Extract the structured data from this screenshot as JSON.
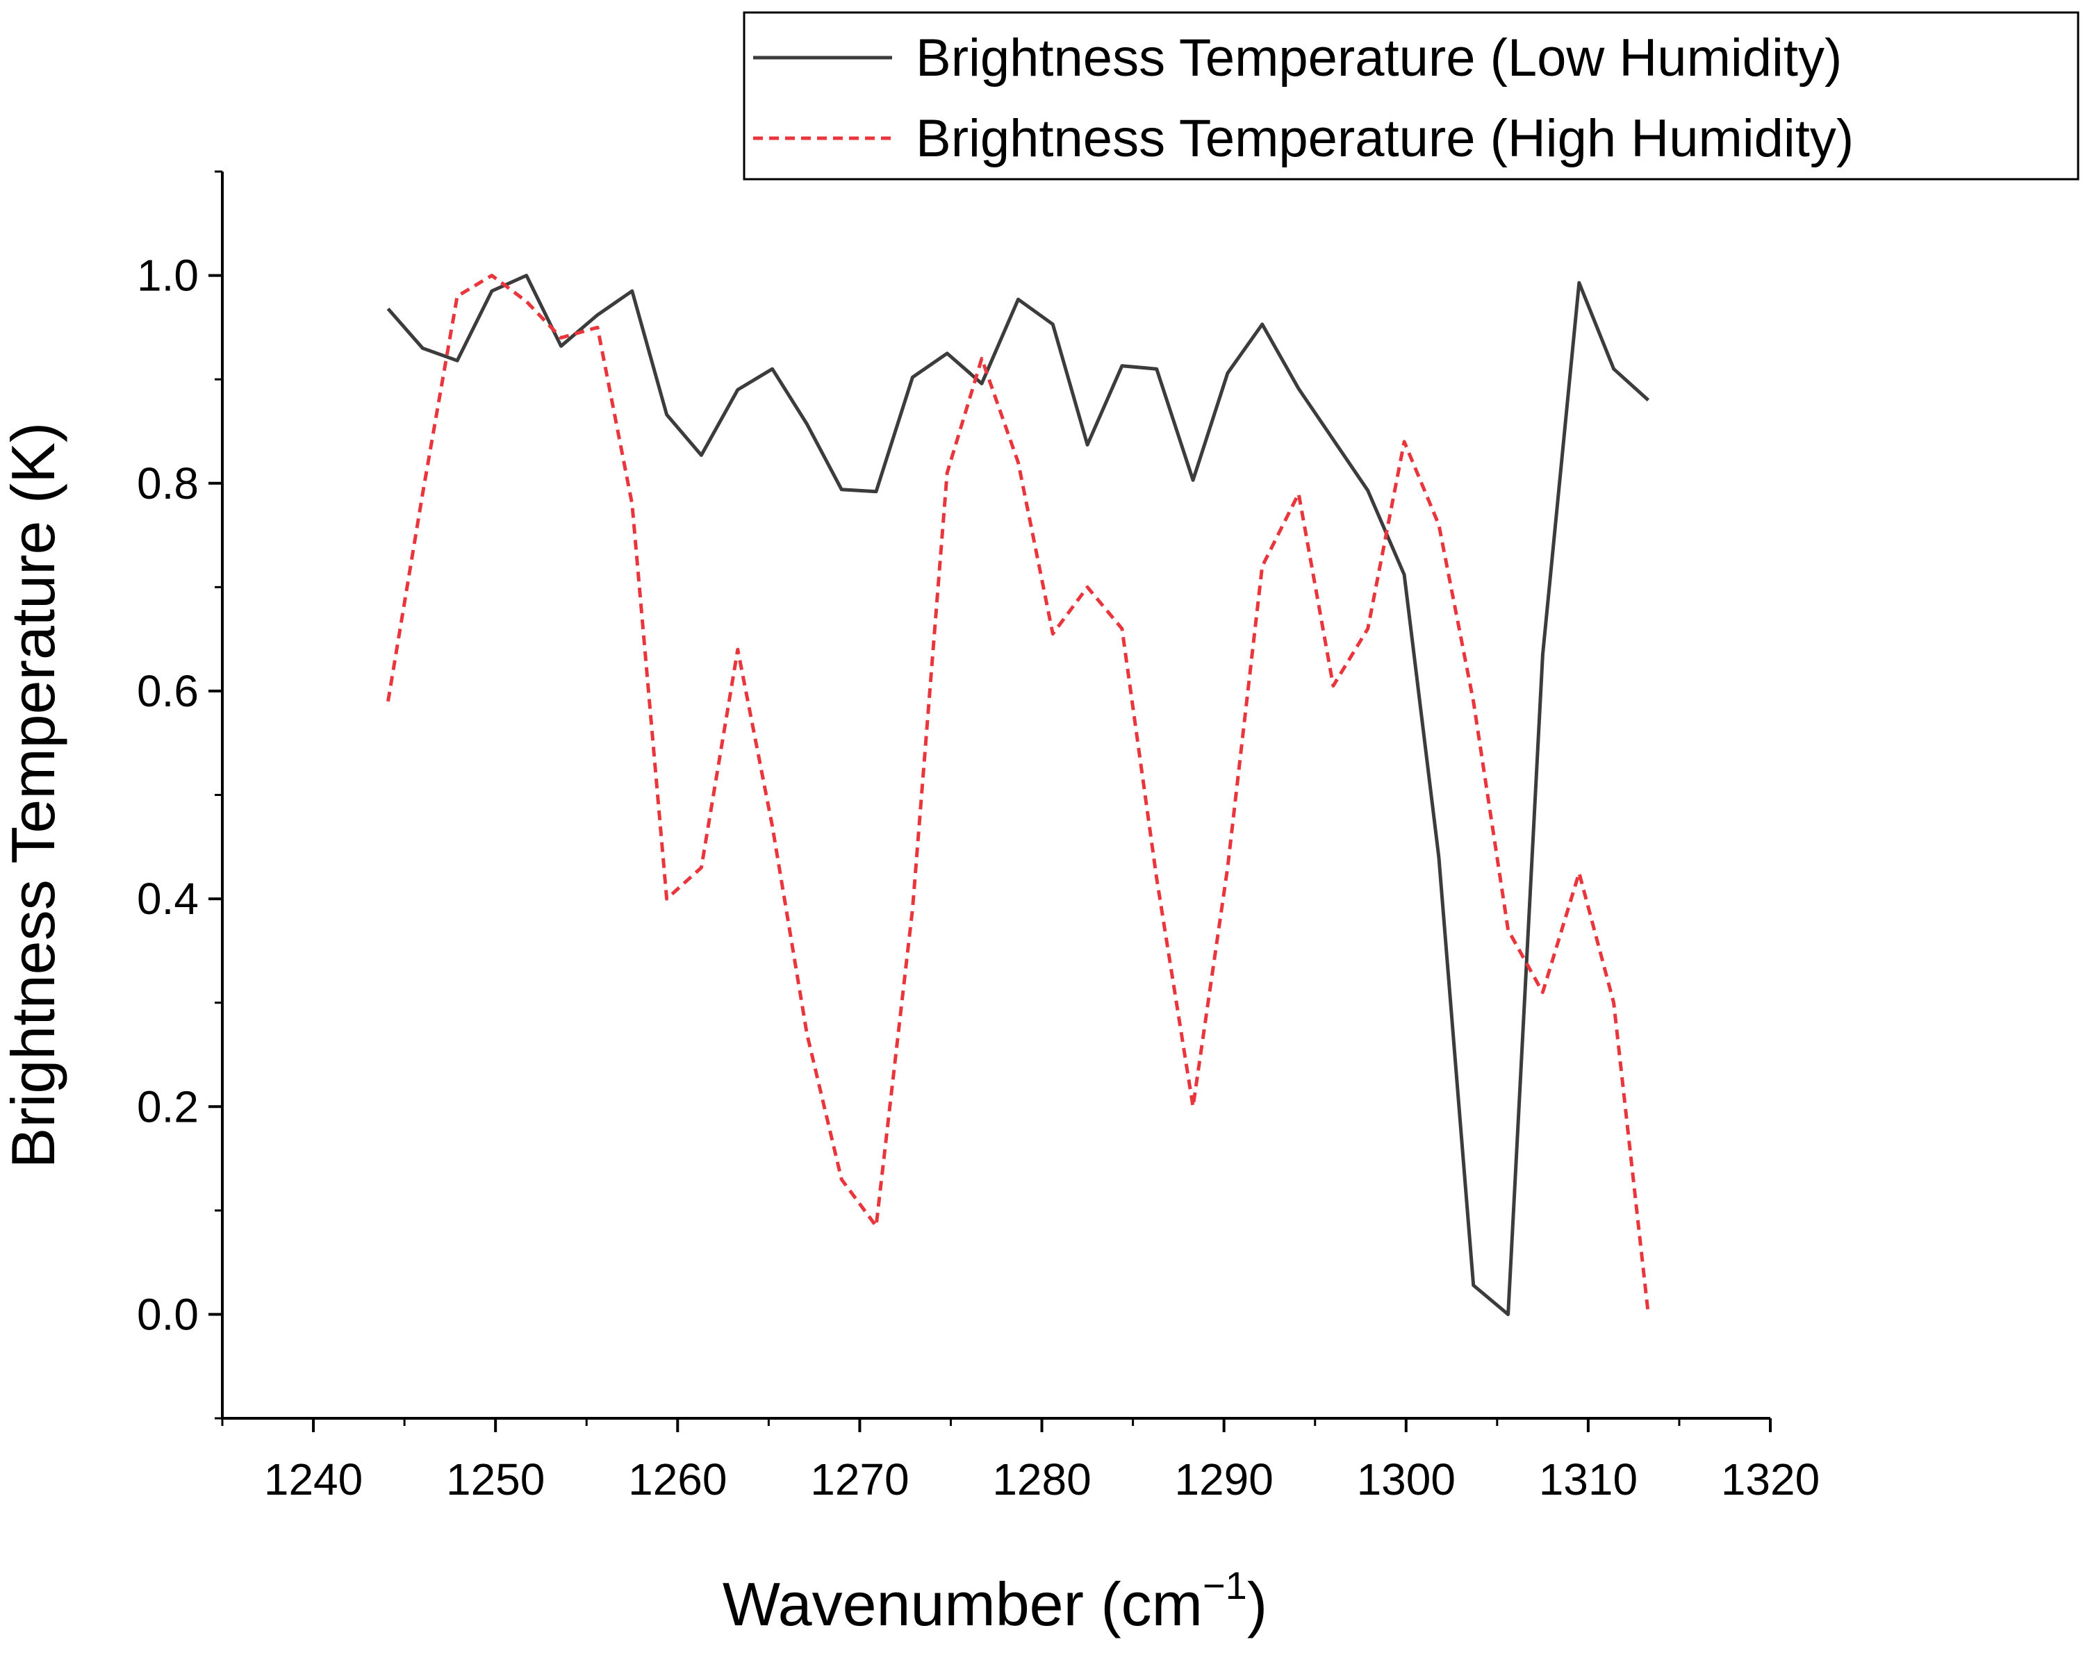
{
  "chart_data": {
    "type": "line",
    "title": "",
    "xlabel": "Wavenumber (cm",
    "xlabel_sup": "−1",
    "xlabel_end": ")",
    "ylabel": "Brightness Temperature (K)",
    "xlim": [
      1235,
      1320
    ],
    "ylim": [
      -0.1,
      1.1
    ],
    "x_ticks": [
      1240,
      1250,
      1260,
      1270,
      1280,
      1290,
      1300,
      1310,
      1320
    ],
    "x_tick_labels": [
      "1240",
      "1250",
      "1260",
      "1270",
      "1280",
      "1290",
      "1300",
      "1310",
      "1320"
    ],
    "y_ticks": [
      0.0,
      0.2,
      0.4,
      0.6,
      0.8,
      1.0
    ],
    "y_tick_labels": [
      "0.0",
      "0.2",
      "0.4",
      "0.6",
      "0.8",
      "1.0"
    ],
    "grid": false,
    "legend_position": "top-right",
    "x": [
      1244.1,
      1246.0,
      1247.9,
      1249.8,
      1251.7,
      1253.6,
      1255.6,
      1257.5,
      1259.4,
      1261.3,
      1263.3,
      1265.2,
      1267.1,
      1269.0,
      1270.9,
      1272.9,
      1274.8,
      1276.7,
      1278.7,
      1280.6,
      1282.5,
      1284.4,
      1286.3,
      1288.3,
      1290.2,
      1292.1,
      1294.1,
      1296.0,
      1297.9,
      1299.9,
      1301.8,
      1303.7,
      1305.6,
      1307.5,
      1309.5,
      1311.4,
      1313.3
    ],
    "series": [
      {
        "name": "Brightness Temperature (Low Humidity)",
        "color": "#3c3c3c",
        "dash": "solid",
        "values": [
          0.968,
          0.93,
          0.918,
          0.985,
          1.0,
          0.932,
          0.962,
          0.985,
          0.866,
          0.827,
          0.89,
          0.91,
          0.857,
          0.794,
          0.792,
          0.902,
          0.925,
          0.896,
          0.977,
          0.953,
          0.837,
          0.913,
          0.91,
          0.803,
          0.906,
          0.953,
          0.891,
          0.842,
          0.793,
          0.712,
          0.44,
          0.028,
          0.0,
          0.635,
          0.993,
          0.91,
          0.88
        ]
      },
      {
        "name": "Brightness Temperature (High Humidity)",
        "color": "#e8363c",
        "dash": "dashed",
        "values": [
          0.59,
          0.79,
          0.98,
          1.0,
          0.975,
          0.94,
          0.95,
          0.78,
          0.4,
          0.43,
          0.64,
          0.47,
          0.27,
          0.13,
          0.085,
          0.39,
          0.81,
          0.92,
          0.82,
          0.655,
          0.7,
          0.66,
          0.42,
          0.2,
          0.43,
          0.72,
          0.79,
          0.605,
          0.66,
          0.84,
          0.76,
          0.59,
          0.37,
          0.31,
          0.425,
          0.3,
          0.0
        ]
      }
    ]
  }
}
